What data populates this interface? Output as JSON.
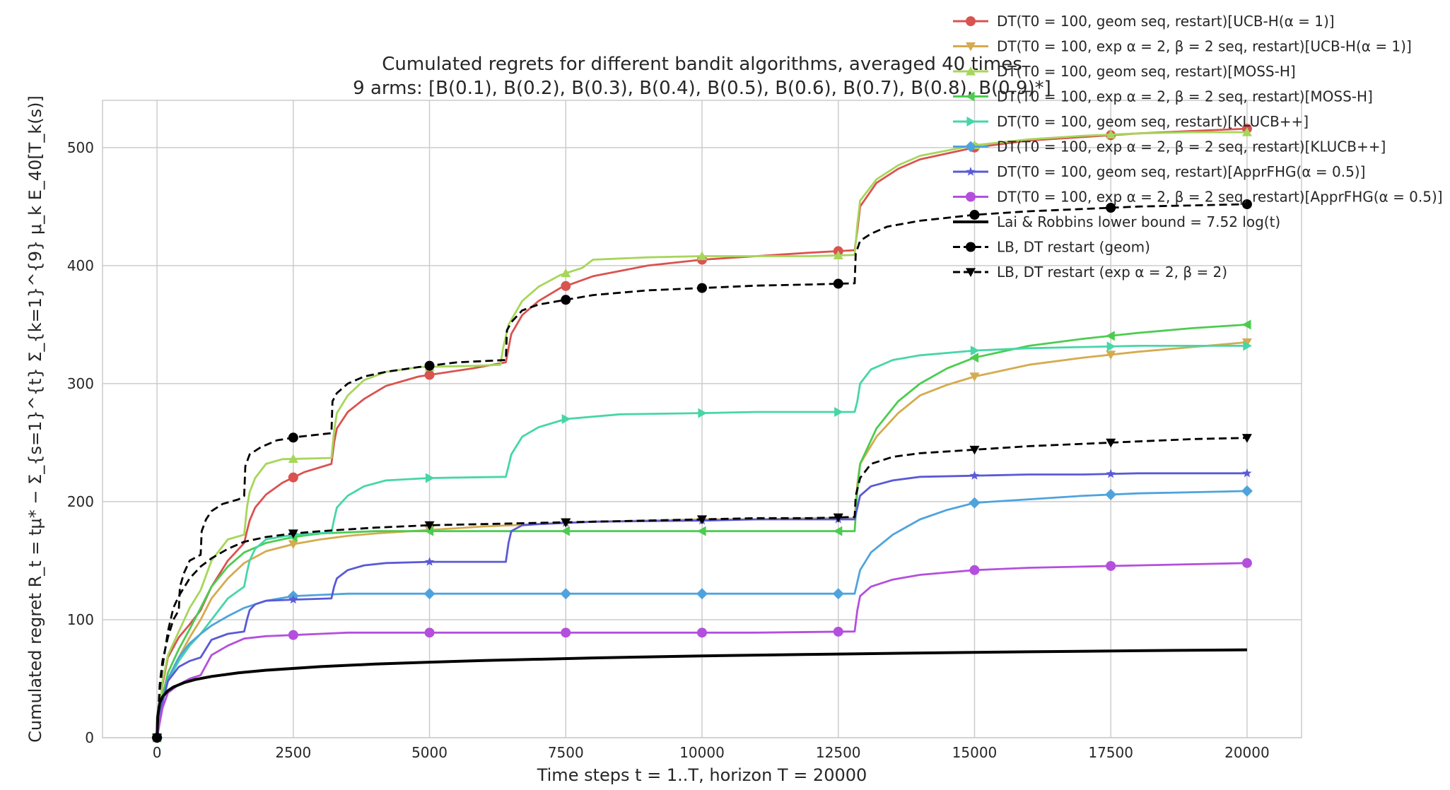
{
  "chart_data": {
    "type": "line",
    "title": "Cumulated regrets for different bandit algorithms, averaged 40 times",
    "subtitle": "9 arms: [B(0.1), B(0.2), B(0.3), B(0.4), B(0.5), B(0.6), B(0.7), B(0.8), B(0.9)*]",
    "xlabel": "Time steps t = 1..T, horizon T = 20000",
    "ylabel": "Cumulated regret R_t = tμ* − Σ_{s=1}^{t} Σ_{k=1}^{9} μ_k E_40[T_k(s)]",
    "xlim": [
      -1000,
      21000
    ],
    "ylim": [
      0,
      540
    ],
    "xticks": [
      0,
      2500,
      5000,
      7500,
      10000,
      12500,
      15000,
      17500,
      20000
    ],
    "xtick_labels": [
      "0",
      "2500",
      "5000",
      "7500",
      "10000",
      "12500",
      "15000",
      "17500",
      "20000"
    ],
    "yticks": [
      0,
      100,
      200,
      300,
      400,
      500
    ],
    "ytick_labels": [
      "0",
      "100",
      "200",
      "300",
      "400",
      "500"
    ],
    "grid": true,
    "legend_position": "top-right",
    "series": [
      {
        "name": "DT(T0 = 100, geom seq, restart)[UCB-H(α = 1)]",
        "color": "#d9534f",
        "marker": "circle",
        "dash": "solid",
        "x": [
          0,
          100,
          200,
          400,
          600,
          800,
          1000,
          1300,
          1600,
          1650,
          1700,
          1800,
          2000,
          2300,
          2700,
          3200,
          3250,
          3300,
          3500,
          3800,
          4200,
          4800,
          5800,
          6400,
          6450,
          6500,
          6700,
          7000,
          7400,
          8000,
          9000,
          10000,
          11000,
          12000,
          12800,
          12850,
          12900,
          13200,
          13600,
          14000,
          15000,
          16000,
          17000,
          18000,
          19000,
          20000
        ],
        "y": [
          0,
          45,
          68,
          85,
          96,
          108,
          128,
          150,
          165,
          175,
          184,
          195,
          206,
          216,
          225,
          232,
          250,
          262,
          276,
          287,
          298,
          306,
          313,
          318,
          330,
          342,
          358,
          370,
          381,
          391,
          400,
          405,
          408,
          411,
          413,
          430,
          450,
          470,
          482,
          490,
          500,
          506,
          509,
          512,
          514,
          516
        ]
      },
      {
        "name": "DT(T0 = 100, exp α = 2, β = 2 seq, restart)[UCB-H(α = 1)]",
        "color": "#d4ab4f",
        "marker": "triangle-down",
        "dash": "solid",
        "x": [
          0,
          100,
          200,
          400,
          600,
          800,
          1000,
          1300,
          1600,
          2000,
          2500,
          3000,
          3500,
          4000,
          5000,
          6000,
          7000,
          8000,
          9000,
          10000,
          11000,
          12000,
          12800,
          12850,
          12900,
          13200,
          13600,
          14000,
          14500,
          15000,
          16000,
          17000,
          18000,
          19000,
          20000
        ],
        "y": [
          0,
          30,
          50,
          68,
          85,
          100,
          118,
          135,
          148,
          158,
          164,
          168,
          171,
          173,
          176,
          179,
          181,
          183,
          184,
          185,
          185,
          186,
          186,
          215,
          232,
          255,
          275,
          290,
          299,
          306,
          316,
          322,
          327,
          331,
          335
        ]
      },
      {
        "name": "DT(T0 = 100, geom seq, restart)[MOSS-H]",
        "color": "#a6d65a",
        "marker": "triangle-up",
        "dash": "solid",
        "x": [
          0,
          100,
          200,
          400,
          600,
          800,
          1000,
          1300,
          1600,
          1650,
          1700,
          1800,
          2000,
          2300,
          3200,
          3250,
          3300,
          3500,
          3800,
          4200,
          4800,
          5800,
          6300,
          6350,
          6450,
          6700,
          7000,
          7400,
          7800,
          8000,
          9000,
          10000,
          11000,
          12000,
          12800,
          12850,
          12900,
          13200,
          13600,
          14000,
          15000,
          16000,
          17000,
          18000,
          19000,
          20000
        ],
        "y": [
          0,
          48,
          70,
          90,
          110,
          125,
          150,
          168,
          172,
          195,
          208,
          220,
          232,
          236,
          237,
          260,
          275,
          290,
          303,
          310,
          314,
          315,
          316,
          330,
          350,
          370,
          382,
          392,
          398,
          405,
          407,
          408,
          408,
          408,
          409,
          435,
          455,
          473,
          485,
          493,
          502,
          507,
          510,
          512,
          513,
          513
        ]
      },
      {
        "name": "DT(T0 = 100, exp α = 2, β = 2 seq, restart)[MOSS-H]",
        "color": "#4ccc4f",
        "marker": "triangle-left",
        "dash": "solid",
        "x": [
          0,
          100,
          200,
          400,
          600,
          800,
          1000,
          1300,
          1600,
          2000,
          2500,
          3000,
          3500,
          4000,
          5000,
          6000,
          7000,
          8000,
          9000,
          10000,
          11000,
          12000,
          12800,
          12850,
          12900,
          13200,
          13600,
          14000,
          14500,
          15000,
          16000,
          17000,
          18000,
          19000,
          20000
        ],
        "y": [
          0,
          35,
          55,
          75,
          92,
          110,
          128,
          145,
          157,
          165,
          170,
          173,
          174,
          175,
          175,
          175,
          175,
          175,
          175,
          175,
          175,
          175,
          175,
          210,
          232,
          262,
          285,
          300,
          313,
          322,
          332,
          338,
          343,
          347,
          350
        ]
      },
      {
        "name": "DT(T0 = 100, geom seq, restart)[KLUCB++]",
        "color": "#46d6a8",
        "marker": "triangle-right",
        "dash": "solid",
        "x": [
          0,
          100,
          200,
          400,
          600,
          800,
          1000,
          1300,
          1600,
          1650,
          1700,
          1800,
          2000,
          2500,
          3200,
          3250,
          3300,
          3500,
          3800,
          4200,
          5000,
          6400,
          6450,
          6500,
          6700,
          7000,
          7500,
          8500,
          10000,
          11000,
          12000,
          12800,
          12850,
          12900,
          13100,
          13500,
          14000,
          15000,
          16000,
          17000,
          18000,
          19000,
          20000
        ],
        "y": [
          0,
          30,
          48,
          65,
          78,
          88,
          100,
          118,
          128,
          140,
          150,
          160,
          168,
          172,
          174,
          185,
          195,
          205,
          213,
          218,
          220,
          221,
          230,
          240,
          255,
          263,
          270,
          274,
          275,
          276,
          276,
          276,
          285,
          300,
          312,
          320,
          324,
          328,
          330,
          331,
          332,
          332,
          332
        ]
      },
      {
        "name": "DT(T0 = 100, exp α = 2, β = 2 seq, restart)[KLUCB++]",
        "color": "#4fa3dd",
        "marker": "diamond",
        "dash": "solid",
        "x": [
          0,
          100,
          200,
          400,
          600,
          800,
          1000,
          1300,
          1600,
          2000,
          2500,
          3000,
          3500,
          5000,
          7000,
          9000,
          11000,
          12800,
          12850,
          12900,
          13100,
          13500,
          14000,
          14500,
          15000,
          16000,
          17000,
          18000,
          19000,
          20000
        ],
        "y": [
          0,
          30,
          50,
          68,
          80,
          88,
          95,
          103,
          110,
          116,
          120,
          121,
          122,
          122,
          122,
          122,
          122,
          122,
          132,
          142,
          157,
          172,
          185,
          193,
          199,
          202,
          205,
          207,
          208,
          209
        ]
      },
      {
        "name": "DT(T0 = 100, geom seq, restart)[ApprFHG(α = 0.5)]",
        "color": "#5a5ad6",
        "marker": "star",
        "dash": "solid",
        "x": [
          0,
          100,
          200,
          400,
          600,
          800,
          1000,
          1300,
          1600,
          1650,
          1700,
          1800,
          2000,
          2500,
          3200,
          3250,
          3300,
          3500,
          3800,
          4200,
          5000,
          6400,
          6450,
          6500,
          6700,
          7000,
          8000,
          10000,
          11000,
          12000,
          12800,
          12850,
          12900,
          13100,
          13500,
          14000,
          15000,
          16000,
          17000,
          18000,
          19000,
          20000
        ],
        "y": [
          0,
          30,
          48,
          60,
          65,
          68,
          83,
          88,
          90,
          100,
          108,
          113,
          116,
          117,
          118,
          128,
          135,
          142,
          146,
          148,
          149,
          149,
          165,
          175,
          180,
          181,
          183,
          184,
          185,
          185,
          185,
          195,
          205,
          213,
          218,
          221,
          222,
          223,
          223,
          224,
          224,
          224
        ]
      },
      {
        "name": "DT(T0 = 100, exp α = 2, β = 2 seq, restart)[ApprFHG(α = 0.5)]",
        "color": "#b44fdd",
        "marker": "circle",
        "dash": "solid",
        "x": [
          0,
          100,
          200,
          400,
          600,
          800,
          1000,
          1300,
          1600,
          2000,
          2500,
          3000,
          3500,
          5000,
          7000,
          9000,
          11000,
          12800,
          12850,
          12900,
          13100,
          13500,
          14000,
          14500,
          15000,
          16000,
          17000,
          18000,
          19000,
          20000
        ],
        "y": [
          0,
          25,
          38,
          45,
          50,
          53,
          70,
          78,
          84,
          86,
          87,
          88,
          89,
          89,
          89,
          89,
          89,
          90,
          108,
          120,
          128,
          134,
          138,
          140,
          142,
          144,
          145,
          146,
          147,
          148
        ]
      },
      {
        "name": "Lai & Robbins lower bound = 7.52 log(t)",
        "color": "#000000",
        "marker": "none",
        "dash": "solid",
        "width": 4,
        "x": [
          1,
          10,
          50,
          100,
          200,
          300,
          500,
          700,
          1000,
          1500,
          2000,
          3000,
          4000,
          5000,
          6000,
          8000,
          10000,
          12000,
          14000,
          16000,
          18000,
          20000
        ],
        "y": [
          0,
          17.3,
          29.4,
          34.6,
          39.8,
          42.9,
          46.7,
          49.3,
          51.9,
          55.0,
          57.2,
          60.2,
          62.4,
          64.0,
          65.4,
          67.6,
          69.3,
          70.6,
          71.8,
          72.8,
          73.7,
          74.5
        ]
      },
      {
        "name": "LB, DT restart (geom)",
        "color": "#000000",
        "marker": "circle",
        "dash": "dashed",
        "x": [
          0,
          50,
          100,
          200,
          300,
          400,
          420,
          500,
          600,
          800,
          820,
          900,
          1000,
          1200,
          1500,
          1600,
          1620,
          1700,
          1900,
          2200,
          2600,
          3200,
          3220,
          3300,
          3500,
          3800,
          4200,
          4800,
          5500,
          6400,
          6420,
          6500,
          6700,
          7000,
          8000,
          9000,
          10000,
          11000,
          12000,
          12800,
          12820,
          12900,
          13100,
          13400,
          14000,
          15000,
          16000,
          17000,
          18000,
          19000,
          20000
        ],
        "y": [
          0,
          45,
          65,
          85,
          100,
          108,
          128,
          140,
          150,
          155,
          175,
          185,
          192,
          198,
          202,
          205,
          230,
          240,
          246,
          252,
          255,
          258,
          285,
          292,
          300,
          306,
          310,
          314,
          318,
          320,
          345,
          352,
          362,
          367,
          375,
          379,
          381,
          383,
          384,
          385,
          410,
          421,
          427,
          433,
          438,
          443,
          446,
          448,
          450,
          451,
          452
        ]
      },
      {
        "name": "LB, DT restart (exp α = 2, β = 2)",
        "color": "#000000",
        "marker": "triangle-down",
        "dash": "dashed",
        "x": [
          0,
          50,
          100,
          200,
          300,
          400,
          600,
          800,
          1000,
          1300,
          1600,
          2000,
          2500,
          3000,
          4000,
          5000,
          6000,
          7000,
          8000,
          9000,
          10000,
          11000,
          12000,
          12800,
          12820,
          12900,
          13100,
          13500,
          14000,
          15000,
          16000,
          17000,
          18000,
          19000,
          20000
        ],
        "y": [
          0,
          40,
          60,
          90,
          110,
          120,
          135,
          145,
          152,
          160,
          166,
          170,
          173,
          175,
          178,
          180,
          181,
          182,
          183,
          184,
          185,
          186,
          186,
          187,
          205,
          220,
          232,
          238,
          241,
          244,
          247,
          249,
          251,
          253,
          254
        ]
      }
    ]
  }
}
